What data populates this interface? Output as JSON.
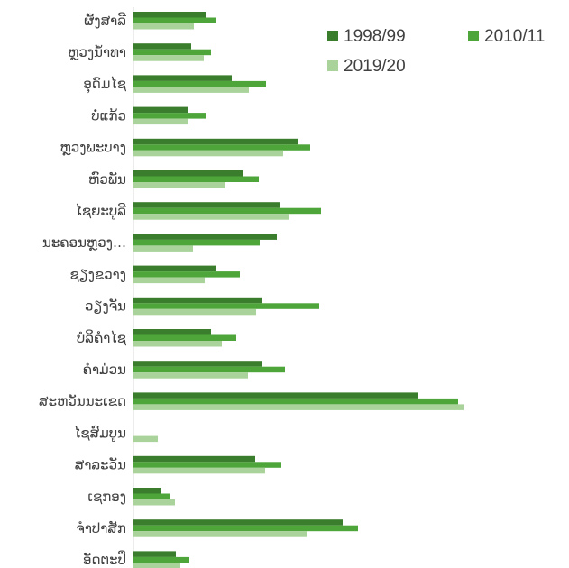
{
  "chart_data": {
    "type": "bar",
    "orientation": "horizontal",
    "title": "",
    "xlabel": "",
    "ylabel": "",
    "grid": false,
    "legend_position": "top-right",
    "categories": [
      "ຜົ້ງສາລີ",
      "ຫຼວງນໍ້າທາ",
      "ອຸດົມໄຊ",
      "ບໍ່ແກ້ວ",
      "ຫຼວງພະບາງ",
      "ຫົວພັນ",
      "ໄຊຍະບູລີ",
      "ນະຄອນຫຼວງ…",
      "ຊຽງຂວາງ",
      "ວຽງຈັນ",
      "ບໍລິຄໍາໄຊ",
      "ຄໍາມ່ວນ",
      "ສະຫວັນນະເຂດ",
      "ໄຊສົມບູນ",
      "ສາລະວັນ",
      "ເຊກອງ",
      "ຈໍາປາສັກ",
      "ອັດຕະປື"
    ],
    "series": [
      {
        "name": "1998/99",
        "color": "#3a7d2c",
        "values": [
          80,
          64,
          109,
          60,
          183,
          121,
          162,
          159,
          91,
          143,
          86,
          143,
          316,
          0,
          135,
          30,
          232,
          47
        ]
      },
      {
        "name": "2010/11",
        "color": "#4ea63b",
        "values": [
          92,
          86,
          147,
          80,
          196,
          139,
          208,
          140,
          118,
          206,
          114,
          168,
          360,
          0,
          164,
          40,
          249,
          62
        ]
      },
      {
        "name": "2019/20",
        "color": "#a9d39a",
        "values": [
          67,
          78,
          128,
          61,
          166,
          101,
          173,
          66,
          79,
          136,
          98,
          127,
          367,
          27,
          146,
          46,
          192,
          52
        ]
      }
    ],
    "xlim": [
      0,
      380
    ]
  }
}
